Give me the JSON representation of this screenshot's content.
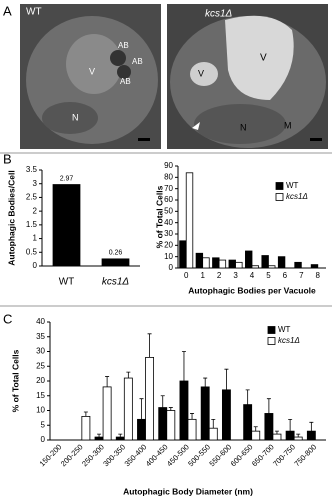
{
  "panel_labels": [
    "A",
    "B",
    "C"
  ],
  "micrographs": [
    {
      "genotype": "WT",
      "labels": [
        "AB",
        "AB",
        "AB",
        "V",
        "N"
      ]
    },
    {
      "genotype": "kcs1Δ",
      "labels": [
        "V",
        "V",
        "N",
        "M"
      ]
    }
  ],
  "chart_data": [
    {
      "type": "bar",
      "y_label": "Autophagic Bodies/Cell",
      "categories": [
        "WT",
        "kcs1Δ"
      ],
      "values": [
        2.97,
        0.26
      ],
      "color": "#000000",
      "ylim": [
        0,
        3.5
      ],
      "yticks": [
        0,
        0.5,
        1,
        1.5,
        2,
        2.5,
        3,
        3.5
      ]
    },
    {
      "type": "bar",
      "y_label": "% of Total Cells",
      "x_label": "Autophagic Bodies per Vacuole",
      "categories": [
        0,
        1,
        2,
        3,
        4,
        5,
        6,
        7,
        8
      ],
      "series": [
        {
          "name": "WT",
          "color": "#000000",
          "values": [
            24,
            13,
            9,
            7,
            15,
            11,
            10,
            5,
            3
          ]
        },
        {
          "name": "kcs1Δ",
          "color": "#ffffff",
          "values": [
            84,
            9,
            7,
            5,
            2,
            2,
            0,
            0,
            0
          ]
        }
      ],
      "ylim": [
        0,
        90
      ],
      "yticks": [
        0,
        10,
        20,
        30,
        40,
        50,
        60,
        70,
        80,
        90
      ],
      "legend": "upper right"
    },
    {
      "type": "bar",
      "y_label": "% of Total Cells",
      "x_label": "Autophagic Body Diameter (nm)",
      "categories": [
        "150-200",
        "200-250",
        "250-300",
        "300-350",
        "350-400",
        "400-450",
        "450-500",
        "500-550",
        "550-600",
        "600-650",
        "650-700",
        "700-750",
        "750-800"
      ],
      "series": [
        {
          "name": "WT",
          "color": "#000000",
          "values": [
            0,
            0,
            1,
            1,
            7,
            11,
            20,
            18,
            17,
            12,
            9,
            3,
            3
          ],
          "error": [
            0,
            0,
            1,
            1,
            7,
            4,
            10,
            3,
            7,
            5,
            5,
            4,
            3
          ]
        },
        {
          "name": "kcs1Δ",
          "color": "#ffffff",
          "values": [
            0,
            8,
            18,
            21,
            28,
            10,
            7,
            4,
            0,
            3,
            2,
            1,
            0
          ],
          "error": [
            0,
            1.5,
            3.5,
            2,
            8,
            1,
            2,
            3,
            0,
            1.5,
            1,
            1,
            0
          ]
        }
      ],
      "ylim": [
        0,
        40
      ],
      "yticks": [
        0,
        5,
        10,
        15,
        20,
        25,
        30,
        35,
        40
      ],
      "legend": "upper right"
    }
  ]
}
